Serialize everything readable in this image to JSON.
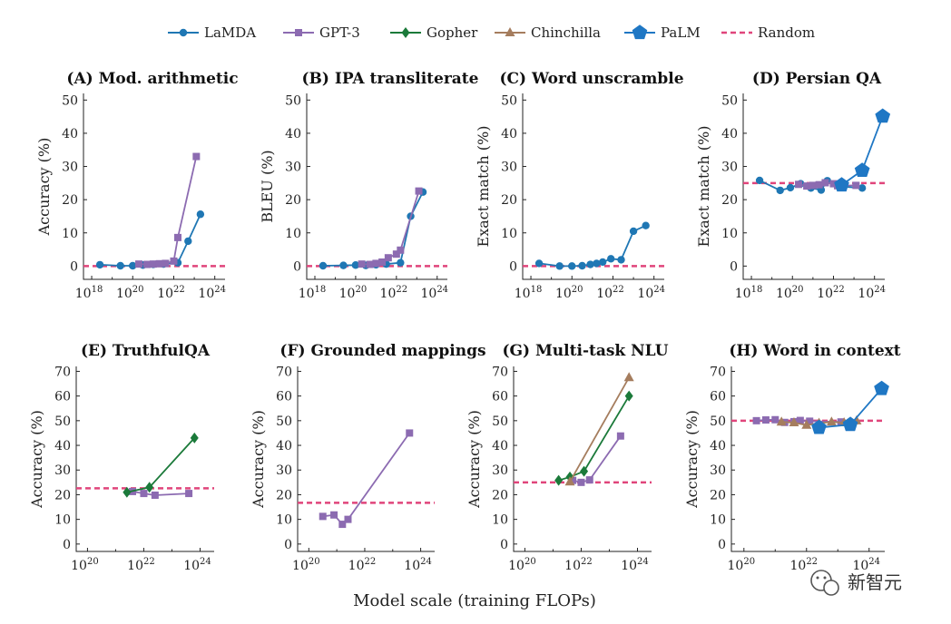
{
  "colors": {
    "LaMDA": "#1f77b4",
    "GPT-3": "#8c6bb1",
    "Gopher": "#1b7a3a",
    "Chinchilla": "#a57d5e",
    "PaLM": "#1f77c4",
    "Random": "#e0457b"
  },
  "legend": [
    {
      "name": "LaMDA",
      "marker": "circle"
    },
    {
      "name": "GPT-3",
      "marker": "square"
    },
    {
      "name": "Gopher",
      "marker": "diamond"
    },
    {
      "name": "Chinchilla",
      "marker": "triangle"
    },
    {
      "name": "PaLM",
      "marker": "pentagon"
    },
    {
      "name": "Random",
      "marker": "dashed-line"
    }
  ],
  "xlabel": "Model scale (training FLOPs)",
  "watermark": "新智元",
  "chart_data": [
    {
      "type": "line",
      "title": "(A) Mod. arithmetic",
      "ylabel": "Accuracy (%)",
      "xscale": "log",
      "xlim_exp": [
        17.6,
        24.5
      ],
      "ylim": [
        -4,
        52
      ],
      "xticks_exp": [
        18,
        20,
        22,
        24
      ],
      "yticks": [
        0,
        10,
        20,
        30,
        40,
        50
      ],
      "random": 0,
      "series": [
        {
          "name": "LaMDA",
          "points": [
            [
              18.4,
              0.4
            ],
            [
              19.4,
              0.1
            ],
            [
              20.0,
              0.1
            ],
            [
              20.5,
              0.3
            ],
            [
              21.0,
              0.5
            ],
            [
              21.5,
              0.6
            ],
            [
              22.2,
              1.0
            ],
            [
              22.7,
              7.5
            ],
            [
              23.3,
              15.6
            ]
          ]
        },
        {
          "name": "GPT-3",
          "points": [
            [
              20.3,
              0.6
            ],
            [
              20.7,
              0.5
            ],
            [
              21.0,
              0.6
            ],
            [
              21.3,
              0.7
            ],
            [
              21.6,
              0.8
            ],
            [
              22.0,
              1.5
            ],
            [
              22.2,
              8.6
            ],
            [
              23.1,
              33.0
            ]
          ]
        }
      ]
    },
    {
      "type": "line",
      "title": "(B) IPA transliterate",
      "ylabel": "BLEU (%)",
      "xscale": "log",
      "xlim_exp": [
        17.6,
        24.5
      ],
      "ylim": [
        -4,
        52
      ],
      "xticks_exp": [
        18,
        20,
        22,
        24
      ],
      "yticks": [
        0,
        10,
        20,
        30,
        40,
        50
      ],
      "random": 0,
      "series": [
        {
          "name": "LaMDA",
          "points": [
            [
              18.4,
              0.1
            ],
            [
              19.4,
              0.2
            ],
            [
              20.0,
              0.3
            ],
            [
              20.5,
              0.2
            ],
            [
              21.0,
              0.4
            ],
            [
              21.5,
              0.6
            ],
            [
              22.2,
              1.0
            ],
            [
              22.7,
              15.0
            ],
            [
              23.3,
              22.3
            ]
          ]
        },
        {
          "name": "GPT-3",
          "points": [
            [
              20.3,
              0.6
            ],
            [
              20.7,
              0.5
            ],
            [
              21.0,
              0.8
            ],
            [
              21.3,
              1.2
            ],
            [
              21.6,
              2.5
            ],
            [
              22.0,
              3.6
            ],
            [
              22.2,
              4.8
            ],
            [
              23.1,
              22.6
            ]
          ]
        }
      ]
    },
    {
      "type": "line",
      "title": "(C) Word unscramble",
      "ylabel": "Exact match (%)",
      "xscale": "log",
      "xlim_exp": [
        17.6,
        24.5
      ],
      "ylim": [
        -4,
        52
      ],
      "xticks_exp": [
        18,
        20,
        22,
        24
      ],
      "yticks": [
        0,
        10,
        20,
        30,
        40,
        50
      ],
      "random": 0,
      "series": [
        {
          "name": "LaMDA",
          "points": [
            [
              18.4,
              0.8
            ],
            [
              19.4,
              0.0
            ],
            [
              20.0,
              0.0
            ],
            [
              20.5,
              0.1
            ],
            [
              20.9,
              0.5
            ],
            [
              21.2,
              0.8
            ],
            [
              21.5,
              1.2
            ],
            [
              21.9,
              2.2
            ],
            [
              22.4,
              1.9
            ],
            [
              23.0,
              10.5
            ],
            [
              23.6,
              12.2
            ]
          ]
        }
      ]
    },
    {
      "type": "line",
      "title": "(D) Persian QA",
      "ylabel": "Exact match (%)",
      "xscale": "log",
      "xlim_exp": [
        17.6,
        24.5
      ],
      "ylim": [
        -4,
        52
      ],
      "xticks_exp": [
        18,
        20,
        22,
        24
      ],
      "yticks": [
        0,
        10,
        20,
        30,
        40,
        50
      ],
      "random": 25,
      "series": [
        {
          "name": "LaMDA",
          "points": [
            [
              18.4,
              25.8
            ],
            [
              19.4,
              22.8
            ],
            [
              19.9,
              23.6
            ],
            [
              20.4,
              24.8
            ],
            [
              20.9,
              23.5
            ],
            [
              21.4,
              22.9
            ],
            [
              21.7,
              25.7
            ],
            [
              22.3,
              24.0
            ],
            [
              23.4,
              23.5
            ]
          ]
        },
        {
          "name": "GPT-3",
          "points": [
            [
              20.3,
              24.6
            ],
            [
              20.7,
              24.1
            ],
            [
              21.0,
              24.3
            ],
            [
              21.3,
              24.5
            ],
            [
              21.6,
              25.1
            ],
            [
              22.0,
              24.8
            ],
            [
              22.2,
              24.2
            ],
            [
              23.1,
              24.3
            ]
          ]
        },
        {
          "name": "PaLM",
          "points": [
            [
              22.4,
              24.4
            ],
            [
              23.4,
              28.8
            ],
            [
              24.4,
              45.1
            ]
          ]
        }
      ]
    },
    {
      "type": "line",
      "title": "(E) TruthfulQA",
      "ylabel": "Accuracy (%)",
      "xscale": "log",
      "xlim_exp": [
        19.6,
        24.5
      ],
      "ylim": [
        -3,
        72
      ],
      "xticks_exp": [
        20,
        22,
        24
      ],
      "yticks": [
        0,
        10,
        20,
        30,
        40,
        50,
        60,
        70
      ],
      "random": 22.6,
      "series": [
        {
          "name": "GPT-3",
          "points": [
            [
              21.6,
              21.3
            ],
            [
              22.0,
              20.5
            ],
            [
              22.4,
              19.8
            ],
            [
              23.6,
              20.5
            ]
          ]
        },
        {
          "name": "Gopher",
          "points": [
            [
              21.4,
              21.0
            ],
            [
              22.2,
              23.0
            ],
            [
              23.8,
              43.0
            ]
          ]
        }
      ]
    },
    {
      "type": "line",
      "title": "(F) Grounded mappings",
      "ylabel": "Accuracy (%)",
      "xscale": "log",
      "xlim_exp": [
        19.6,
        24.5
      ],
      "ylim": [
        -3,
        72
      ],
      "xticks_exp": [
        20,
        22,
        24
      ],
      "yticks": [
        0,
        10,
        20,
        30,
        40,
        50,
        60,
        70
      ],
      "random": 16.7,
      "series": [
        {
          "name": "GPT-3",
          "points": [
            [
              20.5,
              11.2
            ],
            [
              20.9,
              11.8
            ],
            [
              21.2,
              8.0
            ],
            [
              21.4,
              10.0
            ],
            [
              23.6,
              45.0
            ]
          ]
        }
      ]
    },
    {
      "type": "line",
      "title": "(G) Multi-task NLU",
      "ylabel": "Accuracy (%)",
      "xscale": "log",
      "xlim_exp": [
        19.6,
        24.5
      ],
      "ylim": [
        -3,
        72
      ],
      "xticks_exp": [
        20,
        22,
        24
      ],
      "yticks": [
        0,
        10,
        20,
        30,
        40,
        50,
        60,
        70
      ],
      "random": 25,
      "series": [
        {
          "name": "GPT-3",
          "points": [
            [
              21.7,
              25.8
            ],
            [
              22.0,
              25.0
            ],
            [
              22.3,
              26.0
            ],
            [
              23.4,
              43.8
            ]
          ]
        },
        {
          "name": "Gopher",
          "points": [
            [
              21.2,
              25.8
            ],
            [
              21.6,
              27.2
            ],
            [
              22.1,
              29.5
            ],
            [
              23.7,
              60.0
            ]
          ]
        },
        {
          "name": "Chinchilla",
          "points": [
            [
              21.6,
              25.2
            ],
            [
              23.7,
              67.5
            ]
          ]
        }
      ]
    },
    {
      "type": "line",
      "title": "(H) Word in context",
      "ylabel": "Accuracy (%)",
      "xscale": "log",
      "xlim_exp": [
        19.6,
        24.5
      ],
      "ylim": [
        -3,
        72
      ],
      "xticks_exp": [
        20,
        22,
        24
      ],
      "yticks": [
        0,
        10,
        20,
        30,
        40,
        50,
        60,
        70
      ],
      "random": 50,
      "series": [
        {
          "name": "GPT-3",
          "points": [
            [
              20.4,
              50.0
            ],
            [
              20.7,
              50.3
            ],
            [
              21.0,
              50.4
            ],
            [
              21.3,
              49.3
            ],
            [
              21.6,
              49.6
            ],
            [
              21.8,
              50.1
            ],
            [
              22.1,
              49.8
            ],
            [
              23.1,
              49.5
            ]
          ]
        },
        {
          "name": "Chinchilla",
          "points": [
            [
              21.2,
              49.5
            ],
            [
              21.6,
              49.2
            ],
            [
              22.0,
              48.2
            ],
            [
              22.4,
              49.0
            ],
            [
              22.8,
              49.5
            ],
            [
              23.2,
              49.2
            ],
            [
              23.6,
              50.0
            ]
          ]
        },
        {
          "name": "PaLM",
          "points": [
            [
              22.4,
              47.2
            ],
            [
              23.4,
              48.4
            ],
            [
              24.4,
              63.0
            ]
          ]
        }
      ]
    }
  ]
}
